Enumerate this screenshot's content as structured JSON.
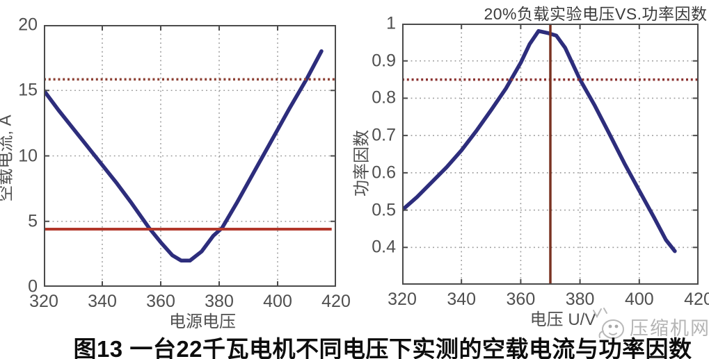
{
  "caption": {
    "text": "图13 一台22千瓦电机不同电压下实测的空载电流与功率因数"
  },
  "watermark": {
    "text": "压缩机网"
  },
  "colors": {
    "curve": "#2d2d7c",
    "grid": "#999999",
    "axis": "#4a4a4a",
    "solid_ref_red": "#b2372a",
    "dotted_ref_red": "#8e4236",
    "vertical_ref_red": "#7a3322"
  },
  "chart_data": [
    {
      "type": "line",
      "title": "",
      "xlabel": "电源电压",
      "ylabel": "空载电流, A",
      "xlim": [
        320,
        420
      ],
      "ylim": [
        0,
        20
      ],
      "xticks": [
        320,
        340,
        360,
        380,
        400,
        420
      ],
      "yticks": [
        0,
        5,
        10,
        15,
        20
      ],
      "grid": "dotted",
      "legend": "none",
      "series": [
        {
          "name": "空载电流",
          "color": "#2d2d7c",
          "x": [
            320,
            325,
            330,
            335,
            340,
            345,
            350,
            356,
            360,
            364,
            367,
            370,
            374,
            378,
            381,
            386,
            392,
            398,
            404,
            410,
            415
          ],
          "y": [
            15,
            13.5,
            12.1,
            10.7,
            9.3,
            7.9,
            6.4,
            4.5,
            3.4,
            2.4,
            2.0,
            2.0,
            2.7,
            3.9,
            4.5,
            6.4,
            8.8,
            11.2,
            13.6,
            15.9,
            18.0
          ]
        }
      ],
      "ref_lines": [
        {
          "name": "rated-current-dotted-line",
          "type": "h",
          "value": 15.85,
          "style": "dotted",
          "color": "#8e4236",
          "width": 3.5
        },
        {
          "name": "no-load-reference-solid-line",
          "type": "h",
          "value": 4.4,
          "style": "solid",
          "color": "#b2372a",
          "width": 4,
          "x_from": 320,
          "x_to": 418.5
        }
      ]
    },
    {
      "type": "line",
      "title": "20%负载实验电压VS.功率因数",
      "xlabel": "电压 U/V",
      "ylabel": "功率因数",
      "xlim": [
        320,
        420
      ],
      "ylim": [
        0.3,
        1.0
      ],
      "xticks": [
        320,
        340,
        360,
        380,
        400,
        420
      ],
      "yticks": [
        0.4,
        0.5,
        0.6,
        0.7,
        0.8,
        0.9,
        1
      ],
      "grid": "dotted",
      "legend": "none",
      "series": [
        {
          "name": "功率因数",
          "color": "#2d2d7c",
          "x": [
            320,
            325,
            330,
            335,
            340,
            345,
            350,
            355,
            360,
            363,
            366,
            369,
            372,
            375,
            380,
            385,
            390,
            395,
            400,
            405,
            409,
            412
          ],
          "y": [
            0.5,
            0.535,
            0.575,
            0.615,
            0.66,
            0.712,
            0.768,
            0.826,
            0.895,
            0.945,
            0.98,
            0.975,
            0.968,
            0.935,
            0.85,
            0.78,
            0.703,
            0.625,
            0.552,
            0.48,
            0.42,
            0.39
          ]
        }
      ],
      "ref_lines": [
        {
          "name": "power-factor-target-dotted-line",
          "type": "h",
          "value": 0.85,
          "style": "dotted",
          "color": "#8c3331",
          "width": 3.5
        },
        {
          "name": "rated-voltage-vertical-line",
          "type": "v",
          "value": 370,
          "style": "solid",
          "color": "#7a3322",
          "width": 3.5
        }
      ]
    }
  ]
}
